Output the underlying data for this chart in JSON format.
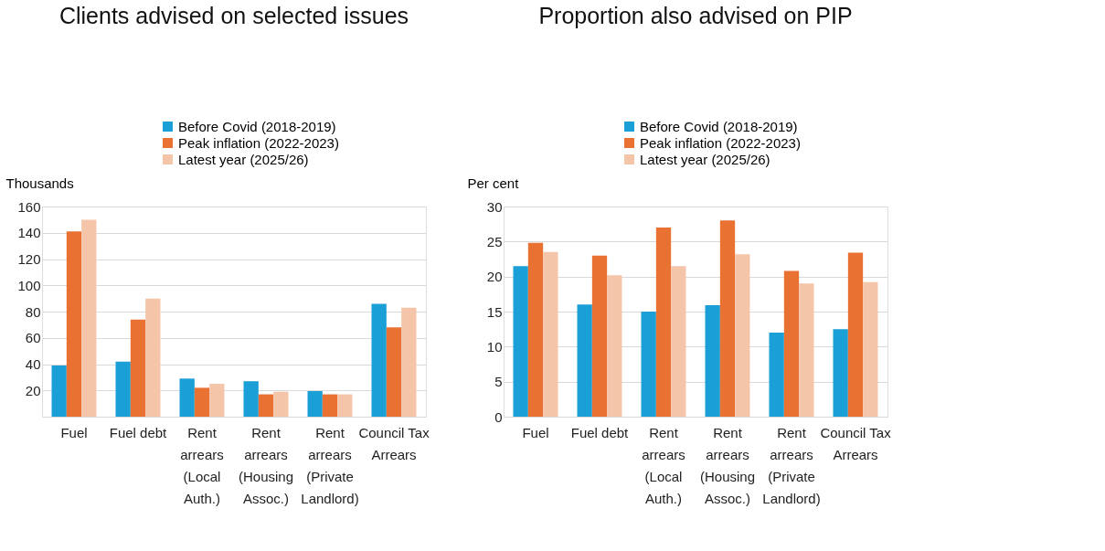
{
  "chart_data": [
    {
      "type": "bar",
      "title": "Clients advised on selected issues",
      "ylabel": "Thousands",
      "categories": [
        "Fuel",
        "Fuel debt",
        "Rent arrears (Local Auth.)",
        "Rent arrears (Housing Assoc.)",
        "Rent arrears (Private Landlord)",
        "Council Tax Arrears"
      ],
      "series": [
        {
          "name": "Before Covid (2018-2019)",
          "color": "#1a9fd6",
          "values": [
            39,
            42,
            29,
            27,
            19.5,
            86
          ]
        },
        {
          "name": "Peak inflation (2022-2023)",
          "color": "#e97132",
          "values": [
            141,
            74,
            22,
            17,
            17,
            68
          ]
        },
        {
          "name": "Latest year (2025/26)",
          "color": "#f5c5aa",
          "values": [
            150,
            90,
            25,
            19,
            17,
            83
          ]
        }
      ],
      "ylim": [
        0,
        160
      ],
      "yticks": [
        {
          "value": 0,
          "label": null
        },
        20,
        40,
        60,
        80,
        100,
        120,
        140,
        160
      ],
      "grid": "y",
      "legend": "top"
    },
    {
      "type": "bar",
      "title": "Proportion also advised on PIP",
      "ylabel": "Per cent",
      "categories": [
        "Fuel",
        "Fuel debt",
        "Rent arrears (Local Auth.)",
        "Rent arrears (Housing Assoc.)",
        "Rent arrears (Private Landlord)",
        "Council Tax Arrears"
      ],
      "series": [
        {
          "name": "Before Covid (2018-2019)",
          "color": "#1a9fd6",
          "values": [
            21.5,
            16,
            15,
            15.9,
            12,
            12.5
          ]
        },
        {
          "name": "Peak inflation (2022-2023)",
          "color": "#e97132",
          "values": [
            24.8,
            23,
            27,
            28,
            20.8,
            23.4
          ]
        },
        {
          "name": "Latest year (2025/26)",
          "color": "#f5c5aa",
          "values": [
            23.5,
            20.2,
            21.5,
            23.2,
            19,
            19.2
          ]
        }
      ],
      "ylim": [
        0,
        30
      ],
      "yticks": [
        0,
        5,
        10,
        15,
        20,
        25,
        30
      ],
      "grid": "y",
      "legend": "top"
    }
  ]
}
